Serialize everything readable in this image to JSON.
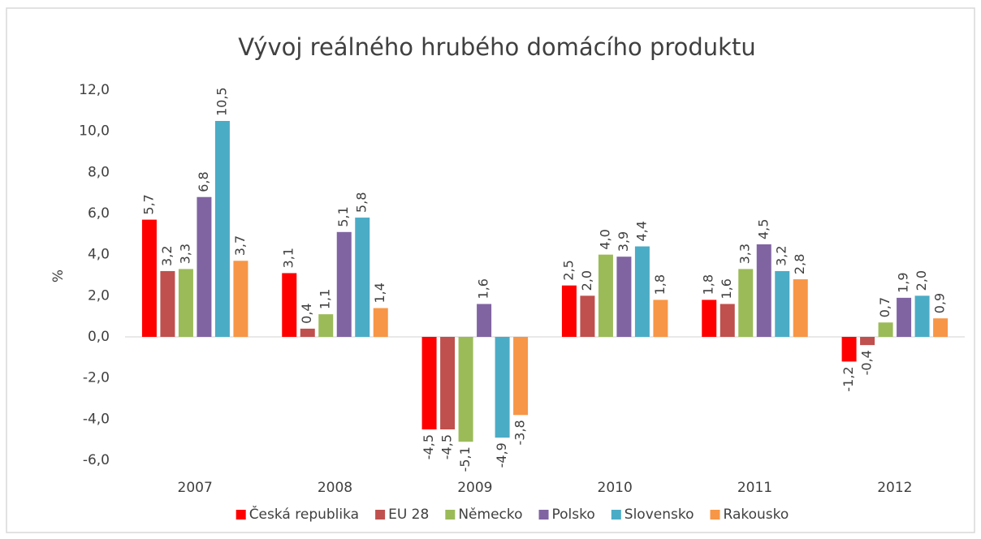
{
  "chart_data": {
    "type": "bar",
    "title": "Vývoj reálného hrubého domácího produktu",
    "y_label": "%",
    "categories": [
      "2007",
      "2008",
      "2009",
      "2010",
      "2011",
      "2012"
    ],
    "series": [
      {
        "name": "Česká republika",
        "color": "#ff0000",
        "values": [
          5.7,
          3.1,
          -4.5,
          2.5,
          1.8,
          -1.2
        ],
        "value_labels": [
          "5,7",
          "3,1",
          "-4,5",
          "2,5",
          "1,8",
          "-1,2"
        ]
      },
      {
        "name": "EU 28",
        "color": "#c0504d",
        "values": [
          3.2,
          0.4,
          -4.5,
          2.0,
          1.6,
          -0.4
        ],
        "value_labels": [
          "3,2",
          "0,4",
          "-4,5",
          "2,0",
          "1,6",
          "-0,4"
        ]
      },
      {
        "name": "Německo",
        "color": "#9bbb59",
        "values": [
          3.3,
          1.1,
          -5.1,
          4.0,
          3.3,
          0.7
        ],
        "value_labels": [
          "3,3",
          "1,1",
          "-5,1",
          "4,0",
          "3,3",
          "0,7"
        ]
      },
      {
        "name": "Polsko",
        "color": "#8064a2",
        "values": [
          6.8,
          5.1,
          1.6,
          3.9,
          4.5,
          1.9
        ],
        "value_labels": [
          "6,8",
          "5,1",
          "1,6",
          "3,9",
          "4,5",
          "1,9"
        ]
      },
      {
        "name": "Slovensko",
        "color": "#4bacc6",
        "values": [
          10.5,
          5.8,
          -4.9,
          4.4,
          3.2,
          2.0
        ],
        "value_labels": [
          "10,5",
          "5,8",
          "-4,9",
          "4,4",
          "3,2",
          "2,0"
        ]
      },
      {
        "name": "Rakousko",
        "color": "#f79646",
        "values": [
          3.7,
          1.4,
          -3.8,
          1.8,
          2.8,
          0.9
        ],
        "value_labels": [
          "3,7",
          "1,4",
          "-3,8",
          "1,8",
          "2,8",
          "0,9"
        ]
      }
    ],
    "ylim": [
      -6,
      12
    ],
    "yticks": [
      {
        "value": -6,
        "label": "-6,0"
      },
      {
        "value": -4,
        "label": "-4,0"
      },
      {
        "value": -2,
        "label": "-2,0"
      },
      {
        "value": 0,
        "label": "0,0"
      },
      {
        "value": 2,
        "label": "2,0"
      },
      {
        "value": 4,
        "label": "4,0"
      },
      {
        "value": 6,
        "label": "6,0"
      },
      {
        "value": 8,
        "label": "8,0"
      },
      {
        "value": 10,
        "label": "10,0"
      },
      {
        "value": 12,
        "label": "12,0"
      }
    ],
    "grid": false,
    "legend": "bottom"
  }
}
